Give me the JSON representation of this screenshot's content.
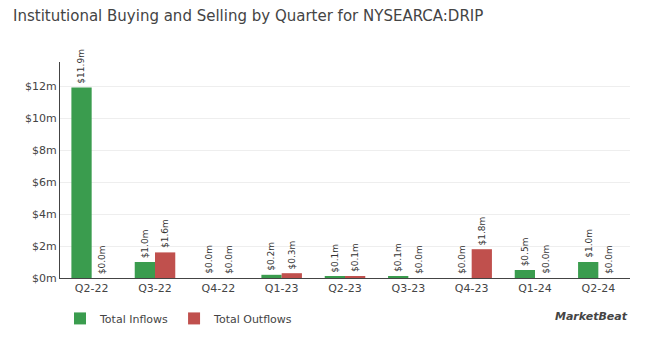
{
  "chart_data": {
    "type": "bar",
    "title": "Institutional Buying and Selling by Quarter for NYSEARCA:DRIP",
    "categories": [
      "Q2-22",
      "Q3-22",
      "Q4-22",
      "Q1-23",
      "Q2-23",
      "Q3-23",
      "Q4-23",
      "Q1-24",
      "Q2-24"
    ],
    "series": [
      {
        "name": "Total Inflows",
        "color": "#3a9c4e",
        "values": [
          11.9,
          1.0,
          0.0,
          0.2,
          0.1,
          0.1,
          0.0,
          0.5,
          1.0
        ],
        "value_labels": [
          "$11.9m",
          "$1.0m",
          "$0.0m",
          "$0.2m",
          "$0.1m",
          "$0.1m",
          "$0.0m",
          "$0.5m",
          "$1.0m"
        ]
      },
      {
        "name": "Total Outflows",
        "color": "#c0504d",
        "values": [
          0.0,
          1.6,
          0.0,
          0.3,
          0.1,
          0.0,
          1.8,
          0.0,
          0.0
        ],
        "value_labels": [
          "$0.0m",
          "$1.6m",
          "$0.0m",
          "$0.3m",
          "$0.1m",
          "$0.0m",
          "$1.8m",
          "$0.0m",
          "$0.0m"
        ]
      }
    ],
    "ylim": [
      0,
      13.5
    ],
    "yticks": [
      {
        "value": 0,
        "label": "$0m"
      },
      {
        "value": 2,
        "label": "$2m"
      },
      {
        "value": 4,
        "label": "$4m"
      },
      {
        "value": 6,
        "label": "$6m"
      },
      {
        "value": 8,
        "label": "$8m"
      },
      {
        "value": 10,
        "label": "$10m"
      },
      {
        "value": 12,
        "label": "$12m"
      }
    ],
    "grid": true,
    "legend": "lower left",
    "data_labels": true,
    "annotations": [
      "MarketBeat"
    ]
  }
}
